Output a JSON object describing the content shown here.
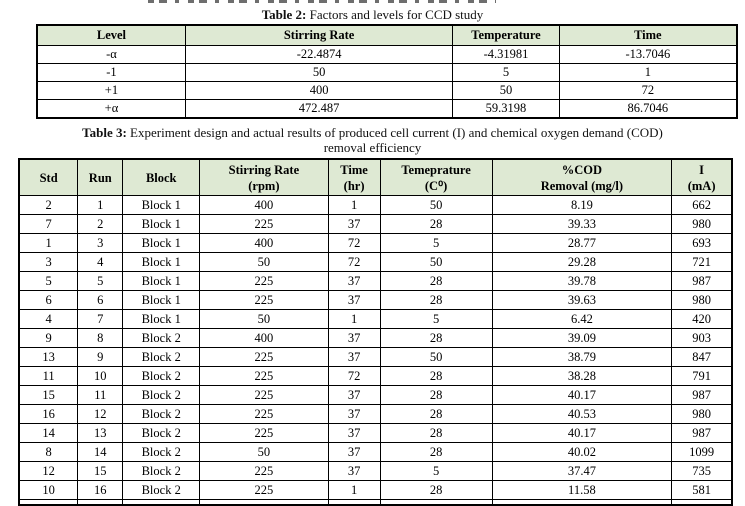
{
  "colors": {
    "header_bg": "#dee9d3",
    "border": "#000000",
    "text": "#000000"
  },
  "table2": {
    "caption": {
      "prefix": "Table 2:",
      "text": " Factors and levels for CCD study"
    },
    "headers": [
      "Level",
      "Stirring Rate",
      "Temperature",
      "Time"
    ],
    "rows": [
      [
        "-α",
        "-22.4874",
        "-4.31981",
        "-13.7046"
      ],
      [
        "-1",
        "50",
        "5",
        "1"
      ],
      [
        "+1",
        "400",
        "50",
        "72"
      ],
      [
        "+α",
        "472.487",
        "59.3198",
        "86.7046"
      ]
    ]
  },
  "table3": {
    "caption": {
      "prefix": "Table 3:",
      "text": " Experiment design and actual results of produced cell current (I) and chemical oxygen demand (COD)",
      "line2": "removal efficiency"
    },
    "headers": [
      {
        "line1": "Std",
        "line2": ""
      },
      {
        "line1": "Run",
        "line2": ""
      },
      {
        "line1": "Block",
        "line2": ""
      },
      {
        "line1": "Stirring Rate",
        "line2": "(rpm)"
      },
      {
        "line1": "Time",
        "line2": "(hr)"
      },
      {
        "line1": "Temeprature",
        "line2": "(C⁰)"
      },
      {
        "line1": "%COD",
        "line2": "Removal (mg/l)"
      },
      {
        "line1": "I",
        "line2": "(mA)"
      }
    ],
    "rows": [
      [
        "2",
        "1",
        "Block 1",
        "400",
        "1",
        "50",
        "8.19",
        "662"
      ],
      [
        "7",
        "2",
        "Block 1",
        "225",
        "37",
        "28",
        "39.33",
        "980"
      ],
      [
        "1",
        "3",
        "Block 1",
        "400",
        "72",
        "5",
        "28.77",
        "693"
      ],
      [
        "3",
        "4",
        "Block 1",
        "50",
        "72",
        "50",
        "29.28",
        "721"
      ],
      [
        "5",
        "5",
        "Block 1",
        "225",
        "37",
        "28",
        "39.78",
        "987"
      ],
      [
        "6",
        "6",
        "Block 1",
        "225",
        "37",
        "28",
        "39.63",
        "980"
      ],
      [
        "4",
        "7",
        "Block 1",
        "50",
        "1",
        "5",
        "6.42",
        "420"
      ],
      [
        "9",
        "8",
        "Block 2",
        "400",
        "37",
        "28",
        "39.09",
        "903"
      ],
      [
        "13",
        "9",
        "Block 2",
        "225",
        "37",
        "50",
        "38.79",
        "847"
      ],
      [
        "11",
        "10",
        "Block 2",
        "225",
        "72",
        "28",
        "38.28",
        "791"
      ],
      [
        "15",
        "11",
        "Block 2",
        "225",
        "37",
        "28",
        "40.17",
        "987"
      ],
      [
        "16",
        "12",
        "Block 2",
        "225",
        "37",
        "28",
        "40.53",
        "980"
      ],
      [
        "14",
        "13",
        "Block 2",
        "225",
        "37",
        "28",
        "40.17",
        "987"
      ],
      [
        "8",
        "14",
        "Block 2",
        "50",
        "37",
        "28",
        "40.02",
        "1099"
      ],
      [
        "12",
        "15",
        "Block 2",
        "225",
        "37",
        "5",
        "37.47",
        "735"
      ],
      [
        "10",
        "16",
        "Block 2",
        "225",
        "1",
        "28",
        "11.58",
        "581"
      ]
    ]
  }
}
